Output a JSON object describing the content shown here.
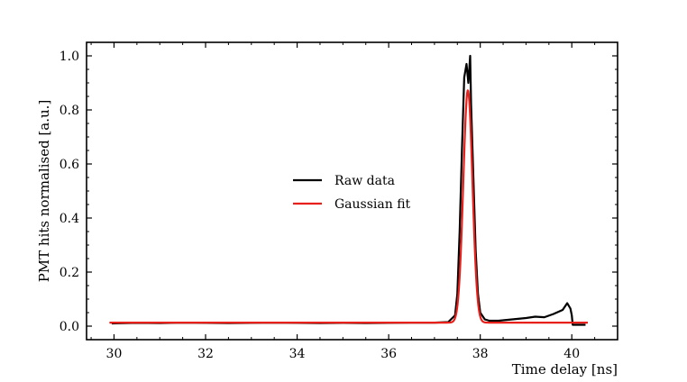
{
  "chart_data": {
    "type": "line",
    "title": "",
    "xlabel": "Time delay [ns]",
    "ylabel": "PMT hits normalised [a.u.]",
    "xlim": [
      29.4,
      41.0
    ],
    "ylim": [
      -0.05,
      1.05
    ],
    "xticks": [
      30,
      32,
      34,
      36,
      38,
      40
    ],
    "yticks": [
      0.0,
      0.2,
      0.4,
      0.6,
      0.8,
      1.0
    ],
    "xtick_labels": [
      "30",
      "32",
      "34",
      "36",
      "38",
      "40"
    ],
    "ytick_labels": [
      "0.0",
      "0.2",
      "0.4",
      "0.6",
      "0.8",
      "1.0"
    ],
    "grid": false,
    "legend_position": "center",
    "series": [
      {
        "name": "Raw data",
        "color": "#000000",
        "x": [
          29.95,
          30.5,
          31.0,
          31.5,
          32.0,
          32.5,
          33.0,
          33.5,
          34.0,
          34.5,
          35.0,
          35.5,
          36.0,
          36.5,
          37.0,
          37.3,
          37.45,
          37.5,
          37.55,
          37.6,
          37.65,
          37.7,
          37.74,
          37.78,
          37.8,
          37.85,
          37.9,
          37.95,
          38.0,
          38.1,
          38.2,
          38.4,
          38.7,
          39.0,
          39.2,
          39.4,
          39.6,
          39.8,
          39.9,
          39.97,
          40.0,
          40.02,
          40.3
        ],
        "y": [
          0.01,
          0.012,
          0.011,
          0.013,
          0.012,
          0.011,
          0.012,
          0.013,
          0.012,
          0.011,
          0.012,
          0.011,
          0.012,
          0.013,
          0.013,
          0.015,
          0.04,
          0.12,
          0.35,
          0.65,
          0.92,
          0.97,
          0.9,
          1.0,
          0.82,
          0.55,
          0.28,
          0.12,
          0.05,
          0.025,
          0.02,
          0.02,
          0.025,
          0.03,
          0.035,
          0.033,
          0.045,
          0.06,
          0.085,
          0.065,
          0.04,
          0.005,
          0.005
        ]
      },
      {
        "name": "Gaussian fit",
        "color": "#e8201b",
        "model": "gaussian",
        "amplitude": 0.86,
        "center": 37.73,
        "sigma": 0.1,
        "baseline": 0.013,
        "x_range": [
          29.9,
          40.35
        ]
      }
    ]
  }
}
